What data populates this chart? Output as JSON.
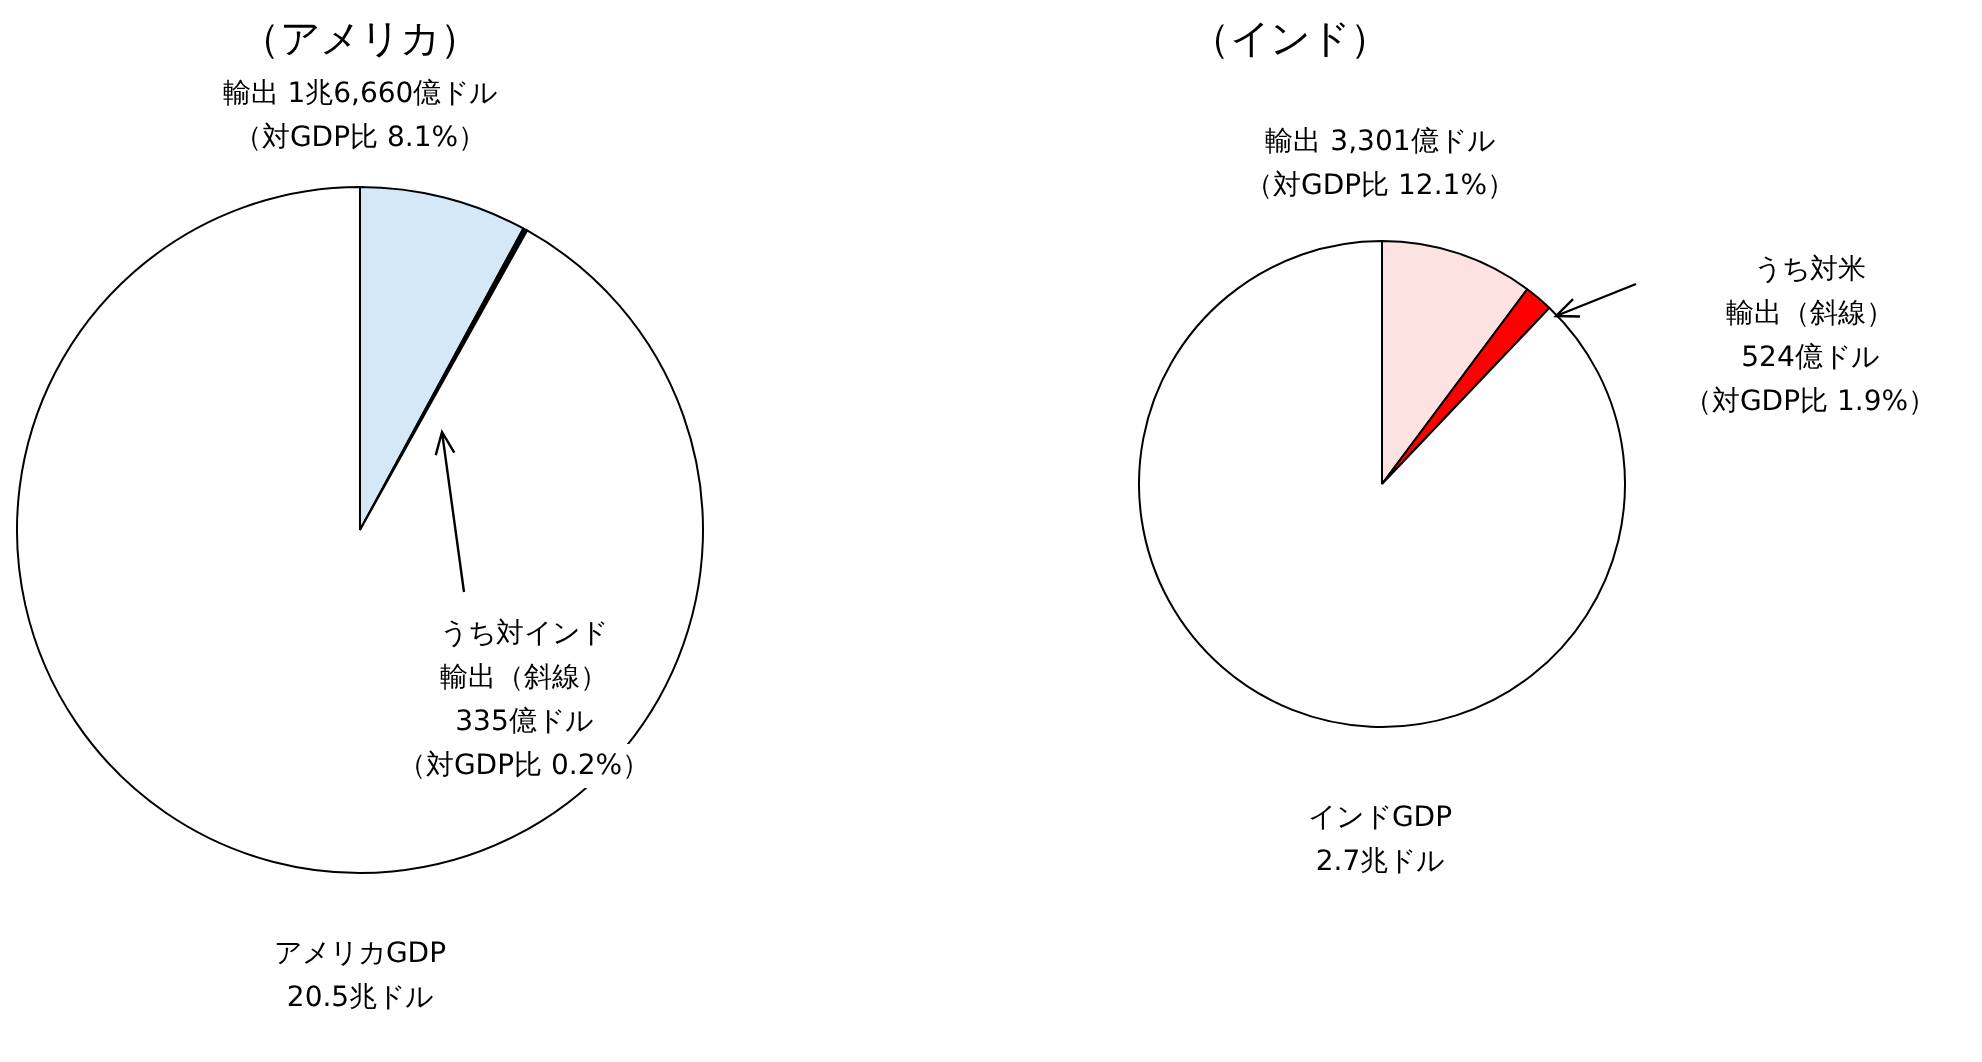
{
  "chart_data": [
    {
      "type": "pie",
      "title": "（アメリカ）",
      "categories": [
        null,
        null,
        null
      ],
      "values": [
        7.9,
        0.2,
        91.9
      ],
      "colors": [
        "#d4e8f7",
        "#000000",
        "#ffffff"
      ],
      "legend": false,
      "annotations": [
        "輸出 1兆6,660億ドル",
        "（対GDP比 8.1%）",
        "うち対インド",
        "輸出（斜線）",
        "335億ドル",
        "（対GDP比 0.2%）",
        "アメリカGDP",
        "20.5兆ドル"
      ]
    },
    {
      "type": "pie",
      "title": "（インド）",
      "categories": [
        null,
        null,
        null
      ],
      "values": [
        10.2,
        1.9,
        87.9
      ],
      "colors": [
        "#fde2e2",
        "#ff0000",
        "#ffffff"
      ],
      "legend": false,
      "annotations": [
        "輸出 3,301億ドル",
        "（対GDP比 12.1%）",
        "うち対米",
        "輸出（斜線）",
        "524億ドル",
        "（対GDP比 1.9%）",
        "インドGDP",
        "2.7兆ドル"
      ]
    }
  ]
}
